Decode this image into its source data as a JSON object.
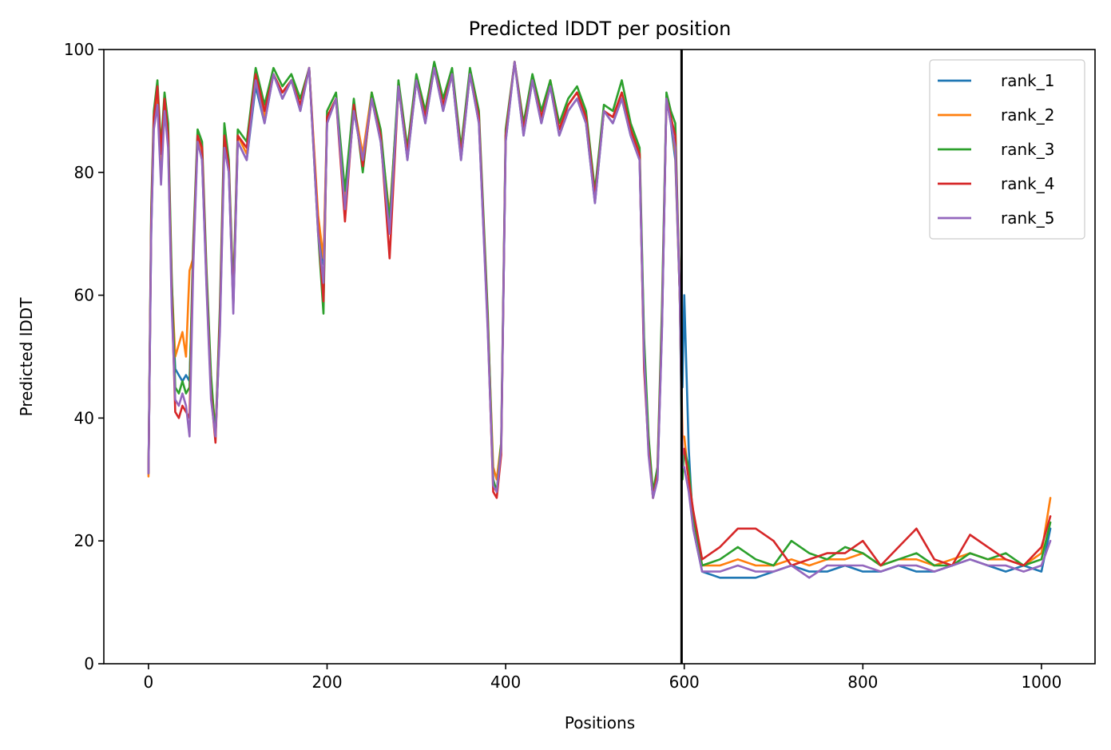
{
  "chart_data": {
    "type": "line",
    "title": "Predicted lDDT per position",
    "xlabel": "Positions",
    "ylabel": "Predicted lDDT",
    "xlim": [
      -50,
      1060
    ],
    "ylim": [
      0,
      100
    ],
    "xticks": [
      "0",
      "200",
      "400",
      "600",
      "800",
      "1000"
    ],
    "yticks": [
      "0",
      "20",
      "40",
      "60",
      "80",
      "100"
    ],
    "legend_position": "top-right",
    "grid": false,
    "vline": 597,
    "colors": {
      "rank_1": "#1f77b4",
      "rank_2": "#ff7f0e",
      "rank_3": "#2ca02c",
      "rank_4": "#d62728",
      "rank_5": "#9467bd",
      "vline": "#000000"
    },
    "series": [
      {
        "name": "rank_1",
        "x": [
          0,
          3,
          6,
          10,
          14,
          18,
          22,
          26,
          30,
          34,
          38,
          42,
          46,
          50,
          55,
          60,
          65,
          70,
          75,
          80,
          85,
          90,
          95,
          100,
          110,
          120,
          130,
          140,
          150,
          160,
          170,
          180,
          190,
          196,
          200,
          210,
          220,
          230,
          240,
          250,
          260,
          270,
          280,
          290,
          300,
          310,
          320,
          330,
          340,
          350,
          360,
          370,
          380,
          386,
          390,
          395,
          400,
          410,
          420,
          430,
          440,
          450,
          460,
          470,
          480,
          490,
          500,
          510,
          520,
          530,
          540,
          550,
          555,
          560,
          565,
          570,
          575,
          580,
          585,
          590,
          595,
          598,
          600,
          605,
          610,
          620,
          640,
          660,
          680,
          700,
          720,
          740,
          760,
          780,
          800,
          820,
          840,
          860,
          880,
          900,
          920,
          940,
          960,
          980,
          1000,
          1010
        ],
        "values": [
          31,
          70,
          88,
          92,
          80,
          91,
          85,
          60,
          48,
          47,
          46,
          47,
          46,
          65,
          86,
          82,
          62,
          45,
          37,
          55,
          85,
          80,
          58,
          85,
          82,
          94,
          88,
          96,
          92,
          95,
          90,
          97,
          72,
          65,
          88,
          92,
          75,
          90,
          82,
          92,
          85,
          72,
          94,
          82,
          95,
          88,
          97,
          90,
          96,
          82,
          96,
          88,
          55,
          30,
          28,
          35,
          85,
          98,
          86,
          95,
          88,
          94,
          86,
          90,
          92,
          88,
          75,
          90,
          88,
          92,
          86,
          82,
          50,
          35,
          27,
          30,
          55,
          92,
          88,
          82,
          60,
          45,
          60,
          35,
          22,
          15,
          14,
          14,
          14,
          15,
          16,
          15,
          15,
          16,
          15,
          15,
          16,
          15,
          15,
          16,
          17,
          16,
          15,
          16,
          15,
          22
        ]
      },
      {
        "name": "rank_2",
        "x": [
          0,
          3,
          6,
          10,
          14,
          18,
          22,
          26,
          30,
          34,
          38,
          42,
          46,
          50,
          55,
          60,
          65,
          70,
          75,
          80,
          85,
          90,
          95,
          100,
          110,
          120,
          130,
          140,
          150,
          160,
          170,
          180,
          190,
          196,
          200,
          210,
          220,
          230,
          240,
          250,
          260,
          270,
          280,
          290,
          300,
          310,
          320,
          330,
          340,
          350,
          360,
          370,
          380,
          386,
          390,
          395,
          400,
          410,
          420,
          430,
          440,
          450,
          460,
          470,
          480,
          490,
          500,
          510,
          520,
          530,
          540,
          550,
          555,
          560,
          565,
          570,
          575,
          580,
          585,
          590,
          595,
          598,
          600,
          605,
          610,
          620,
          640,
          660,
          680,
          700,
          720,
          740,
          760,
          780,
          800,
          820,
          840,
          860,
          880,
          900,
          920,
          940,
          960,
          980,
          1000,
          1010
        ],
        "values": [
          30.5,
          72,
          89,
          93,
          82,
          92,
          86,
          62,
          50,
          52,
          54,
          50,
          64,
          66,
          86,
          83,
          63,
          46,
          38,
          56,
          86,
          81,
          60,
          86,
          83,
          95,
          89,
          96,
          93,
          95,
          91,
          97,
          73,
          66,
          89,
          92,
          76,
          91,
          83,
          93,
          86,
          73,
          94,
          83,
          95,
          89,
          97,
          91,
          96,
          83,
          96,
          89,
          56,
          32,
          30,
          36,
          86,
          98,
          87,
          95,
          89,
          95,
          87,
          91,
          93,
          89,
          76,
          90,
          89,
          93,
          87,
          83,
          52,
          36,
          27,
          31,
          56,
          92,
          89,
          83,
          60,
          37,
          37,
          30,
          24,
          16,
          16,
          17,
          16,
          16,
          17,
          16,
          17,
          17,
          18,
          16,
          17,
          17,
          16,
          17,
          18,
          17,
          17,
          16,
          18,
          27
        ]
      },
      {
        "name": "rank_3",
        "x": [
          0,
          3,
          6,
          10,
          14,
          18,
          22,
          26,
          30,
          34,
          38,
          42,
          46,
          50,
          55,
          60,
          65,
          70,
          75,
          80,
          85,
          90,
          95,
          100,
          110,
          120,
          130,
          140,
          150,
          160,
          170,
          180,
          190,
          196,
          200,
          210,
          220,
          230,
          240,
          250,
          260,
          270,
          280,
          290,
          300,
          310,
          320,
          330,
          340,
          350,
          360,
          370,
          380,
          386,
          390,
          395,
          400,
          410,
          420,
          430,
          440,
          450,
          460,
          470,
          480,
          490,
          500,
          510,
          520,
          530,
          540,
          550,
          555,
          560,
          565,
          570,
          575,
          580,
          585,
          590,
          595,
          598,
          600,
          605,
          610,
          620,
          640,
          660,
          680,
          700,
          720,
          740,
          760,
          780,
          800,
          820,
          840,
          860,
          880,
          900,
          920,
          940,
          960,
          980,
          1000,
          1010
        ],
        "values": [
          31,
          74,
          90,
          95,
          84,
          93,
          88,
          63,
          45,
          44,
          46,
          44,
          45,
          68,
          87,
          85,
          64,
          47,
          37,
          58,
          88,
          82,
          60,
          87,
          85,
          97,
          91,
          97,
          94,
          96,
          92,
          97,
          70,
          57,
          90,
          93,
          77,
          92,
          80,
          93,
          87,
          72,
          95,
          84,
          96,
          90,
          98,
          92,
          97,
          84,
          97,
          90,
          57,
          30,
          28,
          36,
          87,
          98,
          88,
          96,
          90,
          95,
          88,
          92,
          94,
          90,
          77,
          91,
          90,
          95,
          88,
          84,
          53,
          37,
          28,
          32,
          58,
          93,
          90,
          88,
          60,
          30,
          35,
          32,
          24,
          16,
          17,
          19,
          17,
          16,
          20,
          18,
          17,
          19,
          18,
          16,
          17,
          18,
          16,
          16,
          18,
          17,
          18,
          16,
          17,
          23
        ]
      },
      {
        "name": "rank_4",
        "x": [
          0,
          3,
          6,
          10,
          14,
          18,
          22,
          26,
          30,
          34,
          38,
          42,
          46,
          50,
          55,
          60,
          65,
          70,
          75,
          80,
          85,
          90,
          95,
          100,
          110,
          120,
          130,
          140,
          150,
          160,
          170,
          180,
          190,
          196,
          200,
          210,
          220,
          230,
          240,
          250,
          260,
          270,
          280,
          290,
          300,
          310,
          320,
          330,
          340,
          350,
          360,
          370,
          380,
          386,
          390,
          395,
          400,
          410,
          420,
          430,
          440,
          450,
          460,
          470,
          480,
          490,
          500,
          510,
          520,
          530,
          540,
          550,
          555,
          560,
          565,
          570,
          575,
          580,
          585,
          590,
          595,
          598,
          600,
          605,
          610,
          620,
          640,
          660,
          680,
          700,
          720,
          740,
          760,
          780,
          800,
          820,
          840,
          860,
          880,
          900,
          920,
          940,
          960,
          980,
          1000,
          1010
        ],
        "values": [
          31,
          72,
          89,
          94,
          83,
          92,
          86,
          60,
          41,
          40,
          42,
          41,
          40,
          66,
          86,
          84,
          62,
          44,
          36,
          56,
          86,
          81,
          58,
          86,
          84,
          96,
          90,
          96,
          93,
          95,
          91,
          97,
          71,
          59,
          89,
          92,
          72,
          91,
          81,
          92,
          86,
          66,
          94,
          83,
          95,
          89,
          97,
          91,
          96,
          83,
          96,
          89,
          55,
          28,
          27,
          34,
          86,
          98,
          87,
          95,
          89,
          94,
          87,
          91,
          93,
          89,
          76,
          90,
          89,
          93,
          87,
          83,
          48,
          35,
          27,
          31,
          55,
          92,
          89,
          86,
          60,
          34,
          35,
          30,
          25,
          17,
          19,
          22,
          22,
          20,
          16,
          17,
          18,
          18,
          20,
          16,
          19,
          22,
          17,
          16,
          21,
          19,
          17,
          16,
          19,
          24
        ]
      },
      {
        "name": "rank_5",
        "x": [
          0,
          3,
          6,
          10,
          14,
          18,
          22,
          26,
          30,
          34,
          38,
          42,
          46,
          50,
          55,
          60,
          65,
          70,
          75,
          80,
          85,
          90,
          95,
          100,
          110,
          120,
          130,
          140,
          150,
          160,
          170,
          180,
          190,
          196,
          200,
          210,
          220,
          230,
          240,
          250,
          260,
          270,
          280,
          290,
          300,
          310,
          320,
          330,
          340,
          350,
          360,
          370,
          380,
          386,
          390,
          395,
          400,
          410,
          420,
          430,
          440,
          450,
          460,
          470,
          480,
          490,
          500,
          510,
          520,
          530,
          540,
          550,
          555,
          560,
          565,
          570,
          575,
          580,
          585,
          590,
          595,
          598,
          600,
          605,
          610,
          620,
          640,
          660,
          680,
          700,
          720,
          740,
          760,
          780,
          800,
          820,
          840,
          860,
          880,
          900,
          920,
          940,
          960,
          980,
          1000,
          1010
        ],
        "values": [
          31,
          70,
          87,
          91,
          78,
          90,
          84,
          58,
          43,
          42,
          44,
          42,
          37,
          64,
          85,
          82,
          61,
          43,
          37,
          54,
          84,
          80,
          57,
          85,
          82,
          95,
          88,
          96,
          92,
          95,
          90,
          97,
          70,
          62,
          88,
          92,
          74,
          90,
          82,
          92,
          85,
          70,
          94,
          82,
          95,
          88,
          97,
          90,
          96,
          82,
          96,
          88,
          54,
          29,
          28,
          35,
          85,
          98,
          86,
          95,
          88,
          94,
          86,
          90,
          92,
          88,
          75,
          90,
          88,
          92,
          86,
          82,
          50,
          34,
          27,
          30,
          54,
          92,
          88,
          84,
          60,
          32,
          32,
          28,
          22,
          15,
          15,
          16,
          15,
          15,
          16,
          14,
          16,
          16,
          16,
          15,
          16,
          16,
          15,
          16,
          17,
          16,
          16,
          15,
          16,
          20
        ]
      }
    ]
  }
}
